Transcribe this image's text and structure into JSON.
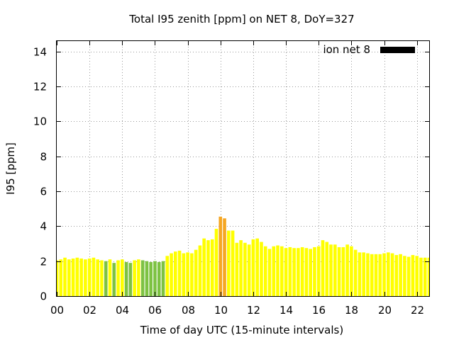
{
  "chart_data": {
    "type": "bar",
    "title": "Total I95 zenith [ppm] on NET 8, DoY=327",
    "xlabel": "Time of day UTC (15-minute intervals)",
    "ylabel": "I95 [ppm]",
    "xlim": [
      0,
      22.75
    ],
    "ylim": [
      0,
      14.6
    ],
    "x_ticks": [
      "00",
      "02",
      "04",
      "06",
      "08",
      "10",
      "12",
      "14",
      "16",
      "18",
      "20",
      "22"
    ],
    "y_ticks": [
      "0",
      "2",
      "4",
      "6",
      "8",
      "10",
      "12",
      "14"
    ],
    "grid": true,
    "legend": {
      "label": "ion net 8",
      "position": "top-right",
      "color": "#000000"
    },
    "colors": {
      "yellow": "#ffff00",
      "green": "#7dc242",
      "orange": "#f5a623"
    },
    "bar_interval_hours": 0.25,
    "values": [
      2.05,
      2.1,
      2.2,
      2.1,
      2.15,
      2.2,
      2.15,
      2.1,
      2.15,
      2.2,
      2.1,
      2.05,
      2.0,
      2.1,
      1.9,
      2.05,
      2.1,
      1.95,
      1.9,
      2.05,
      2.1,
      2.05,
      2.0,
      1.95,
      2.0,
      1.95,
      2.0,
      2.3,
      2.45,
      2.55,
      2.6,
      2.45,
      2.5,
      2.45,
      2.65,
      2.9,
      3.3,
      3.2,
      3.25,
      3.85,
      4.55,
      4.45,
      3.75,
      3.75,
      3.05,
      3.2,
      3.05,
      2.95,
      3.25,
      3.3,
      3.1,
      2.85,
      2.7,
      2.85,
      2.9,
      2.85,
      2.75,
      2.8,
      2.75,
      2.75,
      2.8,
      2.75,
      2.7,
      2.8,
      2.85,
      3.2,
      3.1,
      2.95,
      2.95,
      2.8,
      2.8,
      2.95,
      2.85,
      2.65,
      2.5,
      2.5,
      2.45,
      2.4,
      2.4,
      2.4,
      2.45,
      2.5,
      2.45,
      2.35,
      2.4,
      2.3,
      2.25,
      2.35,
      2.3,
      2.2,
      2.2,
      2.2
    ],
    "bar_colors": [
      "yellow",
      "yellow",
      "yellow",
      "yellow",
      "yellow",
      "yellow",
      "yellow",
      "yellow",
      "yellow",
      "yellow",
      "yellow",
      "yellow",
      "green",
      "yellow",
      "green",
      "yellow",
      "yellow",
      "green",
      "green",
      "yellow",
      "yellow",
      "green",
      "green",
      "green",
      "green",
      "green",
      "green",
      "yellow",
      "yellow",
      "yellow",
      "yellow",
      "yellow",
      "yellow",
      "yellow",
      "yellow",
      "yellow",
      "yellow",
      "yellow",
      "yellow",
      "yellow",
      "orange",
      "orange",
      "yellow",
      "yellow",
      "yellow",
      "yellow",
      "yellow",
      "yellow",
      "yellow",
      "yellow",
      "yellow",
      "yellow",
      "yellow",
      "yellow",
      "yellow",
      "yellow",
      "yellow",
      "yellow",
      "yellow",
      "yellow",
      "yellow",
      "yellow",
      "yellow",
      "yellow",
      "yellow",
      "yellow",
      "yellow",
      "yellow",
      "yellow",
      "yellow",
      "yellow",
      "yellow",
      "yellow",
      "yellow",
      "yellow",
      "yellow",
      "yellow",
      "yellow",
      "yellow",
      "yellow",
      "yellow",
      "yellow",
      "yellow",
      "yellow",
      "yellow",
      "yellow",
      "yellow",
      "yellow",
      "yellow",
      "yellow",
      "yellow",
      "yellow"
    ]
  }
}
